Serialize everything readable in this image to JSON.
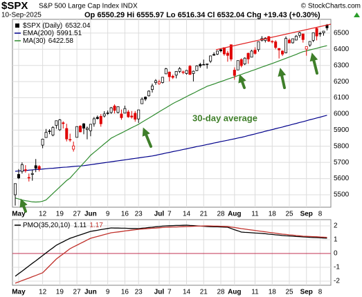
{
  "header": {
    "symbol": "$SPX",
    "name": "S&P 500 Large Cap Index INDX",
    "copyright": "© StockCharts.com",
    "date": "10-Sep-2025",
    "fields": [
      "Op",
      "Hi",
      "Lo",
      "Cl"
    ],
    "change_label": "Chg",
    "change": "+19.43 (+0.30%)"
  },
  "chart_data": [
    {
      "type": "candlestick",
      "annotation": "30-day average",
      "grid": true,
      "ylim": [
        5423,
        6585
      ],
      "yticks": [
        5500,
        5600,
        5700,
        5800,
        5900,
        6000,
        6100,
        6200,
        6300,
        6400,
        6500
      ],
      "categories": [
        null,
        "May",
        null,
        null,
        null,
        null,
        null,
        null,
        "12",
        null,
        null,
        null,
        null,
        "19",
        null,
        null,
        null,
        null,
        "27",
        null,
        null,
        null,
        "Jun",
        null,
        null,
        null,
        null,
        "9",
        null,
        null,
        null,
        null,
        "16",
        null,
        null,
        null,
        "23",
        null,
        null,
        null,
        null,
        null,
        "Jul",
        null,
        null,
        "7",
        null,
        null,
        null,
        null,
        "14",
        null,
        null,
        null,
        null,
        "21",
        null,
        null,
        null,
        null,
        "28",
        null,
        null,
        null,
        "Aug",
        null,
        null,
        null,
        null,
        null,
        "11",
        null,
        null,
        null,
        null,
        "18",
        null,
        null,
        null,
        null,
        "25",
        null,
        null,
        null,
        null,
        "Sep",
        null,
        null,
        null,
        "8",
        null,
        null
      ],
      "price": {
        "name": "$SPX (Daily)",
        "up_color": "#000000",
        "down_color": "#e00000",
        "ohlc": [
          [
            5500,
            5570,
            5433,
            5569
          ],
          [
            5626,
            5659,
            5597,
            5604
          ],
          [
            5645,
            5700,
            5631,
            5686
          ],
          [
            5655,
            5683,
            5637,
            5650
          ],
          [
            5606,
            5631,
            5582,
            5607
          ],
          [
            5626,
            5655,
            5587,
            5631
          ],
          [
            5680,
            5721,
            5640,
            5664
          ],
          [
            5675,
            5683,
            5644,
            5660
          ],
          [
            5807,
            5847,
            5788,
            5844
          ],
          [
            5854,
            5907,
            5853,
            5886
          ],
          [
            5894,
            5906,
            5875,
            5892
          ],
          [
            5869,
            5924,
            5862,
            5916
          ],
          [
            5929,
            5959,
            5908,
            5958
          ],
          [
            5902,
            5968,
            5895,
            5963
          ],
          [
            5945,
            5954,
            5910,
            5940
          ],
          [
            5910,
            5939,
            5830,
            5845
          ],
          [
            5841,
            5878,
            5827,
            5842
          ],
          [
            5782,
            5829,
            5767,
            5802
          ],
          [
            5855,
            5923,
            5855,
            5922
          ],
          [
            5925,
            5930,
            5886,
            5889
          ],
          [
            5939,
            5943,
            5874,
            5912
          ],
          [
            5903,
            5922,
            5843,
            5912
          ],
          [
            5896,
            5937,
            5862,
            5936
          ],
          [
            5939,
            5981,
            5921,
            5970
          ],
          [
            5979,
            5990,
            5966,
            5971
          ],
          [
            5985,
            5999,
            5921,
            5939
          ],
          [
            5987,
            6017,
            5978,
            6000
          ],
          [
            6004,
            6021,
            5994,
            6006
          ],
          [
            6009,
            6043,
            6000,
            6038
          ],
          [
            6049,
            6059,
            6003,
            6022
          ],
          [
            6009,
            6045,
            6003,
            6045
          ],
          [
            6000,
            6027,
            5964,
            5977
          ],
          [
            6005,
            6051,
            6004,
            6033
          ],
          [
            6012,
            6024,
            5976,
            5982
          ],
          [
            5987,
            6018,
            5971,
            5981
          ],
          [
            6004,
            6018,
            5952,
            5967
          ],
          [
            5969,
            6026,
            5944,
            6025
          ],
          [
            6063,
            6102,
            6063,
            6092
          ],
          [
            6104,
            6108,
            6080,
            6092
          ],
          [
            6112,
            6146,
            6107,
            6141
          ],
          [
            6151,
            6187,
            6132,
            6173
          ],
          [
            6194,
            6215,
            6180,
            6205
          ],
          [
            6187,
            6211,
            6180,
            6198
          ],
          [
            6194,
            6227,
            6188,
            6227
          ],
          [
            6248,
            6285,
            6247,
            6279
          ],
          [
            6259,
            6262,
            6201,
            6230
          ],
          [
            6233,
            6243,
            6216,
            6226
          ],
          [
            6240,
            6265,
            6220,
            6263
          ],
          [
            6263,
            6290,
            6253,
            6280
          ],
          [
            6256,
            6268,
            6246,
            6260
          ],
          [
            6250,
            6272,
            6243,
            6269
          ],
          [
            6295,
            6302,
            6242,
            6244
          ],
          [
            6250,
            6268,
            6201,
            6264
          ],
          [
            6268,
            6301,
            6265,
            6297
          ],
          [
            6306,
            6316,
            6285,
            6297
          ],
          [
            6305,
            6336,
            6303,
            6306
          ],
          [
            6306,
            6310,
            6280,
            6309
          ],
          [
            6326,
            6360,
            6315,
            6359
          ],
          [
            6368,
            6381,
            6360,
            6363
          ],
          [
            6370,
            6390,
            6364,
            6389
          ],
          [
            6397,
            6402,
            6381,
            6390
          ],
          [
            6410,
            6410,
            6360,
            6371
          ],
          [
            6376,
            6390,
            6323,
            6362
          ],
          [
            6428,
            6428,
            6326,
            6339
          ],
          [
            6271,
            6288,
            6212,
            6238
          ],
          [
            6272,
            6330,
            6271,
            6330
          ],
          [
            6336,
            6344,
            6288,
            6299
          ],
          [
            6309,
            6350,
            6302,
            6345
          ],
          [
            6375,
            6379,
            6310,
            6340
          ],
          [
            6351,
            6396,
            6350,
            6389
          ],
          [
            6394,
            6412,
            6367,
            6374
          ],
          [
            6398,
            6446,
            6385,
            6446
          ],
          [
            6456,
            6481,
            6448,
            6466
          ],
          [
            6454,
            6474,
            6442,
            6469
          ],
          [
            6478,
            6482,
            6445,
            6450
          ],
          [
            6445,
            6455,
            6437,
            6449
          ],
          [
            6446,
            6456,
            6400,
            6411
          ],
          [
            6405,
            6407,
            6343,
            6396
          ],
          [
            6389,
            6393,
            6358,
            6370
          ],
          [
            6378,
            6479,
            6375,
            6467
          ],
          [
            6457,
            6467,
            6438,
            6439
          ],
          [
            6440,
            6466,
            6435,
            6465
          ],
          [
            6457,
            6488,
            6455,
            6481
          ],
          [
            6486,
            6508,
            6471,
            6502
          ],
          [
            6495,
            6495,
            6441,
            6460
          ],
          [
            6401,
            6416,
            6360,
            6416
          ],
          [
            6426,
            6450,
            6415,
            6448
          ],
          [
            6455,
            6502,
            6444,
            6502
          ],
          [
            6529,
            6533,
            6455,
            6482
          ],
          [
            6498,
            6508,
            6478,
            6495
          ],
          [
            6502,
            6513,
            6484,
            6512
          ],
          [
            6550.29,
            6555.97,
            6516.34,
            6532.04
          ]
        ]
      },
      "series": [
        {
          "name": "EMA(200)",
          "color": "#00008b",
          "values": [
            5645,
            5647,
            5648,
            5650,
            5652,
            5654,
            5656,
            5657,
            5659,
            5661,
            5663,
            5664,
            5666,
            5668,
            5670,
            5671,
            5673,
            5675,
            5677,
            5678,
            5680,
            5683,
            5686,
            5689,
            5692,
            5695,
            5698,
            5701,
            5704,
            5707,
            5710,
            5713,
            5716,
            5719,
            5722,
            5725,
            5728,
            5731,
            5734,
            5737,
            5740,
            5744,
            5749,
            5753,
            5758,
            5762,
            5767,
            5771,
            5775,
            5780,
            5784,
            5789,
            5793,
            5798,
            5802,
            5806,
            5811,
            5815,
            5820,
            5824,
            5829,
            5833,
            5837,
            5842,
            5846,
            5851,
            5855,
            5860,
            5866,
            5871,
            5876,
            5882,
            5887,
            5893,
            5898,
            5903,
            5909,
            5914,
            5919,
            5925,
            5930,
            5936,
            5941,
            5947,
            5952,
            5958,
            5964,
            5969,
            5975,
            5980,
            5986,
            5991.51
          ]
        },
        {
          "name": "MA(30)",
          "color": "#2e8b2e",
          "values": [
            5480,
            5474,
            5468,
            5463,
            5460,
            5456,
            5455,
            5456,
            5460,
            5468,
            5488,
            5508,
            5528,
            5548,
            5568,
            5588,
            5603,
            5627,
            5650,
            5674,
            5697,
            5720,
            5744,
            5762,
            5779,
            5797,
            5815,
            5832,
            5850,
            5861,
            5872,
            5882,
            5893,
            5904,
            5915,
            5925,
            5936,
            5949,
            5962,
            5974,
            5987,
            6000,
            6013,
            6026,
            6038,
            6051,
            6064,
            6075,
            6085,
            6096,
            6107,
            6118,
            6128,
            6139,
            6150,
            6160,
            6171,
            6178,
            6185,
            6193,
            6200,
            6207,
            6215,
            6222,
            6229,
            6237,
            6244,
            6252,
            6259,
            6267,
            6274,
            6282,
            6290,
            6297,
            6305,
            6312,
            6320,
            6328,
            6336,
            6344,
            6352,
            6360,
            6368,
            6377,
            6385,
            6390,
            6396,
            6401,
            6406,
            6412,
            6417,
            6422.58
          ]
        }
      ]
    },
    {
      "type": "line",
      "title": "PMO(35,20,10)",
      "grid": true,
      "zero_line": true,
      "ylim": [
        -2.3,
        2.45
      ],
      "yticks": [
        2,
        1,
        0,
        -1,
        -2
      ],
      "categories": [
        null,
        "May",
        null,
        null,
        null,
        null,
        null,
        null,
        "12",
        null,
        null,
        null,
        null,
        "19",
        null,
        null,
        null,
        null,
        "27",
        null,
        null,
        null,
        "Jun",
        null,
        null,
        null,
        null,
        "9",
        null,
        null,
        null,
        null,
        "16",
        null,
        null,
        null,
        "23",
        null,
        null,
        null,
        null,
        null,
        "Jul",
        null,
        null,
        "7",
        null,
        null,
        null,
        null,
        "14",
        null,
        null,
        null,
        null,
        "21",
        null,
        null,
        null,
        null,
        "28",
        null,
        null,
        null,
        "Aug",
        null,
        null,
        null,
        null,
        null,
        "11",
        null,
        null,
        null,
        null,
        "18",
        null,
        null,
        null,
        null,
        "25",
        null,
        null,
        null,
        null,
        "Sep",
        null,
        null,
        null,
        "8",
        null,
        null
      ],
      "series": [
        {
          "color": "#000000",
          "values": [
            -1.65,
            -1.46,
            -1.28,
            -1.09,
            -0.9,
            -0.71,
            -0.53,
            -0.34,
            -0.15,
            0.04,
            0.23,
            0.41,
            0.6,
            0.73,
            0.85,
            0.98,
            1.1,
            1.18,
            1.27,
            1.35,
            1.43,
            1.52,
            1.6,
            1.64,
            1.68,
            1.73,
            1.77,
            1.81,
            1.85,
            1.84,
            1.84,
            1.83,
            1.83,
            1.82,
            1.81,
            1.81,
            1.8,
            1.83,
            1.85,
            1.88,
            1.9,
            1.93,
            1.95,
            1.98,
            2.0,
            2.01,
            2.02,
            2.03,
            2.03,
            2.04,
            2.05,
            2.03,
            2.02,
            2.0,
            1.98,
            1.97,
            1.95,
            1.94,
            1.93,
            1.93,
            1.92,
            1.91,
            1.9,
            1.81,
            1.72,
            1.64,
            1.55,
            1.53,
            1.52,
            1.5,
            1.48,
            1.47,
            1.45,
            1.43,
            1.4,
            1.38,
            1.35,
            1.33,
            1.3,
            1.28,
            1.27,
            1.25,
            1.23,
            1.22,
            1.2,
            1.19,
            1.17,
            1.16,
            1.15,
            1.14,
            1.12,
            1.11
          ]
        },
        {
          "color": "#c0302a",
          "values": [
            -2.15,
            -2.06,
            -1.96,
            -1.87,
            -1.78,
            -1.68,
            -1.59,
            -1.49,
            -1.4,
            -1.15,
            -0.9,
            -0.65,
            -0.4,
            -0.21,
            -0.03,
            0.16,
            0.35,
            0.48,
            0.6,
            0.73,
            0.85,
            0.98,
            1.1,
            1.17,
            1.23,
            1.3,
            1.37,
            1.43,
            1.5,
            1.53,
            1.56,
            1.59,
            1.63,
            1.66,
            1.69,
            1.72,
            1.75,
            1.77,
            1.79,
            1.81,
            1.83,
            1.84,
            1.86,
            1.88,
            1.9,
            1.91,
            1.92,
            1.92,
            1.93,
            1.94,
            1.95,
            1.96,
            1.97,
            1.98,
            1.98,
            1.99,
            2.0,
            1.99,
            1.98,
            1.98,
            1.97,
            1.96,
            1.95,
            1.91,
            1.88,
            1.84,
            1.8,
            1.77,
            1.73,
            1.7,
            1.67,
            1.63,
            1.6,
            1.57,
            1.53,
            1.5,
            1.47,
            1.43,
            1.4,
            1.38,
            1.35,
            1.33,
            1.3,
            1.28,
            1.25,
            1.24,
            1.23,
            1.22,
            1.21,
            1.19,
            1.18,
            1.17
          ]
        }
      ]
    }
  ]
}
